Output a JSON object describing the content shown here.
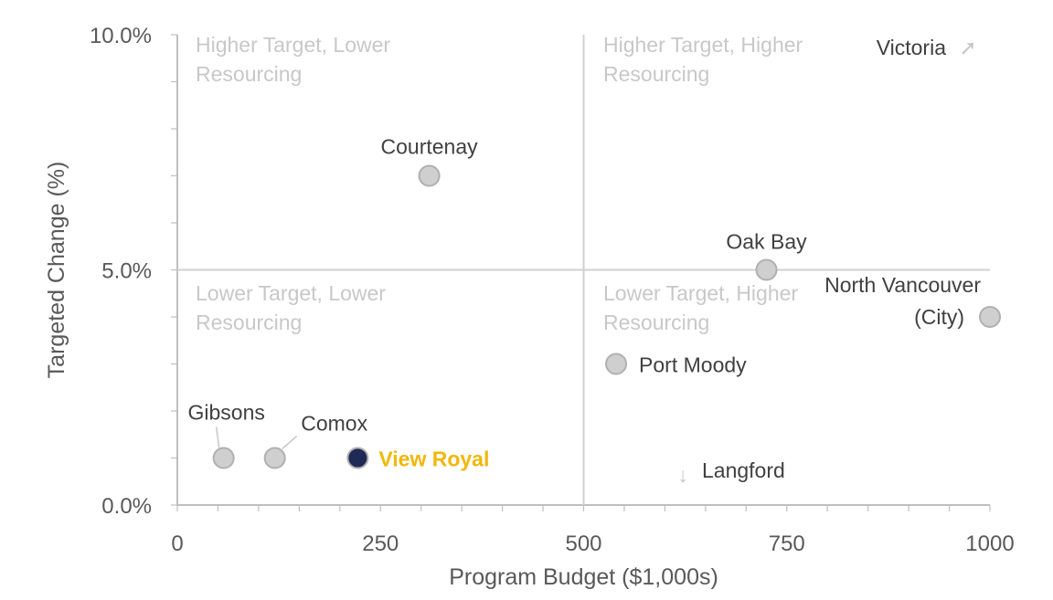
{
  "chart_data": {
    "type": "scatter",
    "xlabel": "Program Budget ($1,000s)",
    "ylabel": "Targeted Change (%)",
    "xlim": [
      0,
      1000
    ],
    "ylim": [
      0,
      10
    ],
    "x_ticks": [
      {
        "value": 0,
        "label": "0"
      },
      {
        "value": 250,
        "label": "250"
      },
      {
        "value": 500,
        "label": "500"
      },
      {
        "value": 750,
        "label": "750"
      },
      {
        "value": 1000,
        "label": "1000"
      }
    ],
    "y_ticks": [
      {
        "value": 0,
        "label": "0.0%"
      },
      {
        "value": 5,
        "label": "5.0%"
      },
      {
        "value": 10,
        "label": "10.0%"
      }
    ],
    "divider_x": 500,
    "divider_y": 5,
    "quadrant_labels": [
      {
        "id": "tl",
        "lines": [
          "Higher Target, Lower",
          "Resourcing"
        ]
      },
      {
        "id": "tr",
        "lines": [
          "Higher Target, Higher",
          "Resourcing"
        ]
      },
      {
        "id": "bl",
        "lines": [
          "Lower Target, Lower",
          "Resourcing"
        ]
      },
      {
        "id": "br",
        "lines": [
          "Lower Target, Higher",
          "Resourcing"
        ]
      }
    ],
    "points": [
      {
        "name": "Courtenay",
        "x": 310,
        "y": 7.0,
        "color": "#cfcfcf",
        "highlight": false
      },
      {
        "name": "Oak Bay",
        "x": 725,
        "y": 5.0,
        "color": "#cfcfcf",
        "highlight": false
      },
      {
        "name": "North Vancouver (City)",
        "label_lines": [
          "North Vancouver",
          "(City)"
        ],
        "x": 1000,
        "y": 4.0,
        "color": "#cfcfcf",
        "highlight": false
      },
      {
        "name": "Port Moody",
        "x": 540,
        "y": 3.0,
        "color": "#cfcfcf",
        "highlight": false
      },
      {
        "name": "Gibsons",
        "x": 57,
        "y": 1.0,
        "color": "#cfcfcf",
        "highlight": false
      },
      {
        "name": "Comox",
        "x": 120,
        "y": 1.0,
        "color": "#cfcfcf",
        "highlight": false
      },
      {
        "name": "View Royal",
        "x": 222,
        "y": 1.0,
        "color": "#1f2a55",
        "label_color": "#f2b705",
        "highlight": true
      }
    ],
    "offscale": [
      {
        "name": "Victoria",
        "direction": "up-right",
        "arrow": "➚"
      },
      {
        "name": "Langford",
        "direction": "down",
        "arrow": "↓"
      }
    ]
  }
}
